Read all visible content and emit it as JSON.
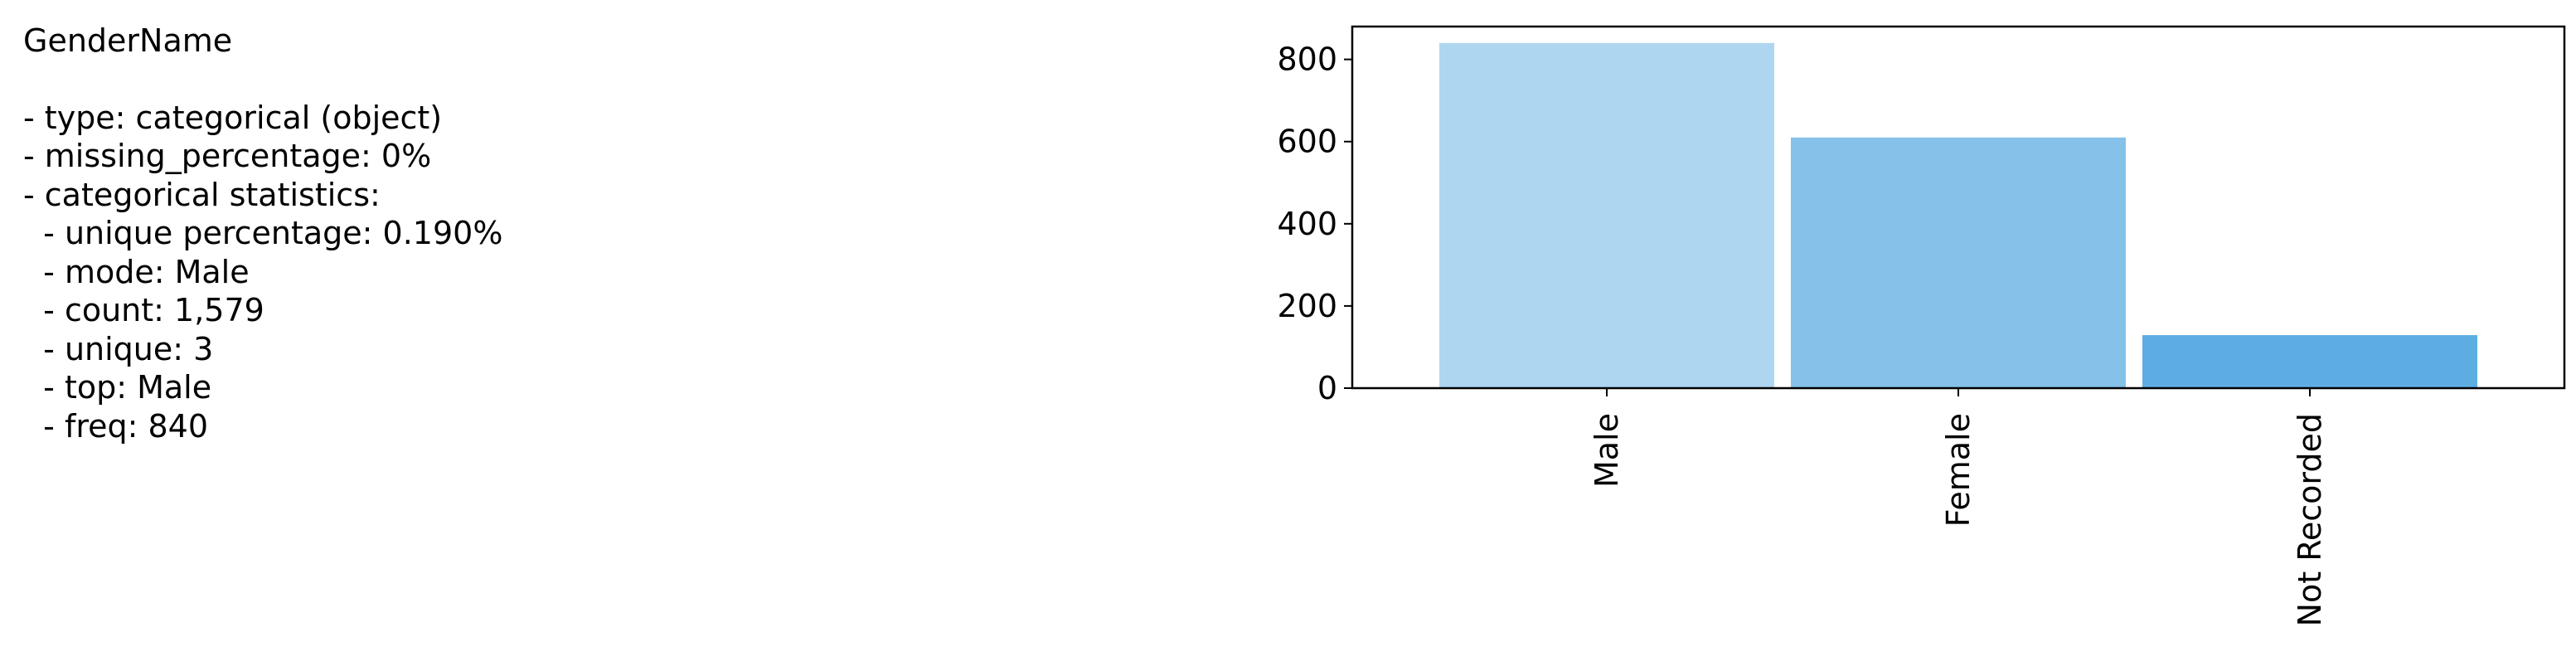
{
  "stats": {
    "column_name": "GenderName",
    "lines": [
      "- type: categorical (object)",
      "- missing_percentage: 0%",
      "- categorical statistics:",
      "  - unique percentage: 0.190%",
      "  - mode: Male",
      "  - count: 1,579",
      "  - unique: 3",
      "  - top: Male",
      "  - freq: 840"
    ]
  },
  "chart_data": {
    "type": "bar",
    "categories": [
      "Male",
      "Female",
      "Not Recorded"
    ],
    "values": [
      840,
      610,
      129
    ],
    "colors": [
      "#aed6f1",
      "#85c1e9",
      "#5dade2"
    ],
    "ylim": [
      0,
      880
    ],
    "yticks": [
      0,
      200,
      400,
      600,
      800
    ],
    "title": "",
    "xlabel": "",
    "ylabel": "",
    "grid": false,
    "legend": false
  }
}
